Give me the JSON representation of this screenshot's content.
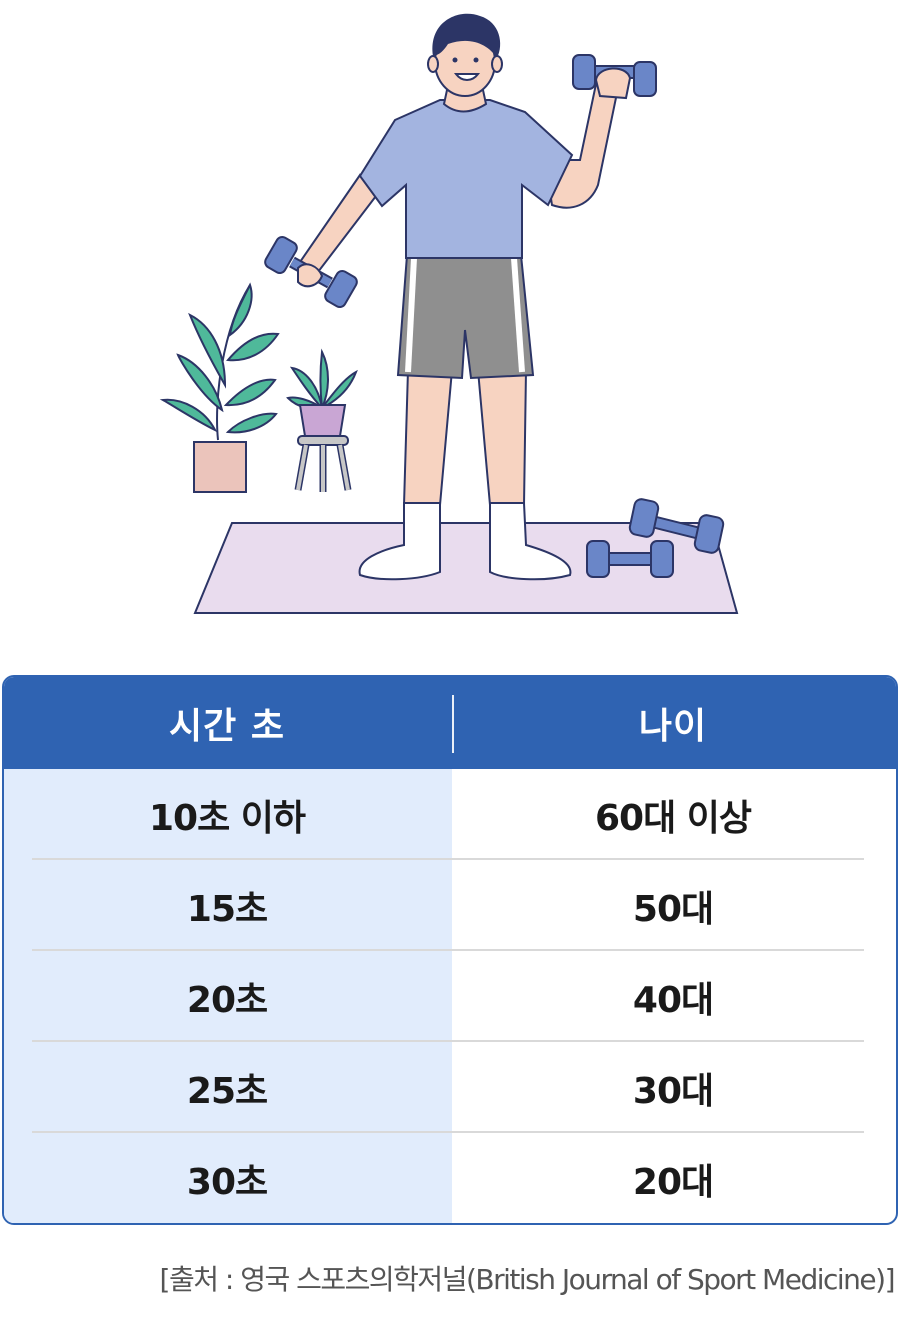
{
  "table": {
    "header": {
      "col_time": "시간 초",
      "col_age": "나이"
    },
    "rows": [
      {
        "time": "10초 이하",
        "age": "60대 이상"
      },
      {
        "time": "15초",
        "age": "50대"
      },
      {
        "time": "20초",
        "age": "40대"
      },
      {
        "time": "25초",
        "age": "30대"
      },
      {
        "time": "30초",
        "age": "20대"
      }
    ]
  },
  "source": "[출처 : 영국 스포츠의학저널(British Journal of Sport Medicine)]",
  "colors": {
    "header_bg": "#2f63b2",
    "left_column_bg": "#e1ecfc",
    "shirt": "#a3b4e0",
    "shorts": "#8f8f8f",
    "dumbbell": "#6a86c8",
    "mat": "#e9dcee",
    "leaf": "#4fb99a"
  },
  "illustration": {
    "icon": "man-exercising-with-dumbbells-illustration"
  }
}
